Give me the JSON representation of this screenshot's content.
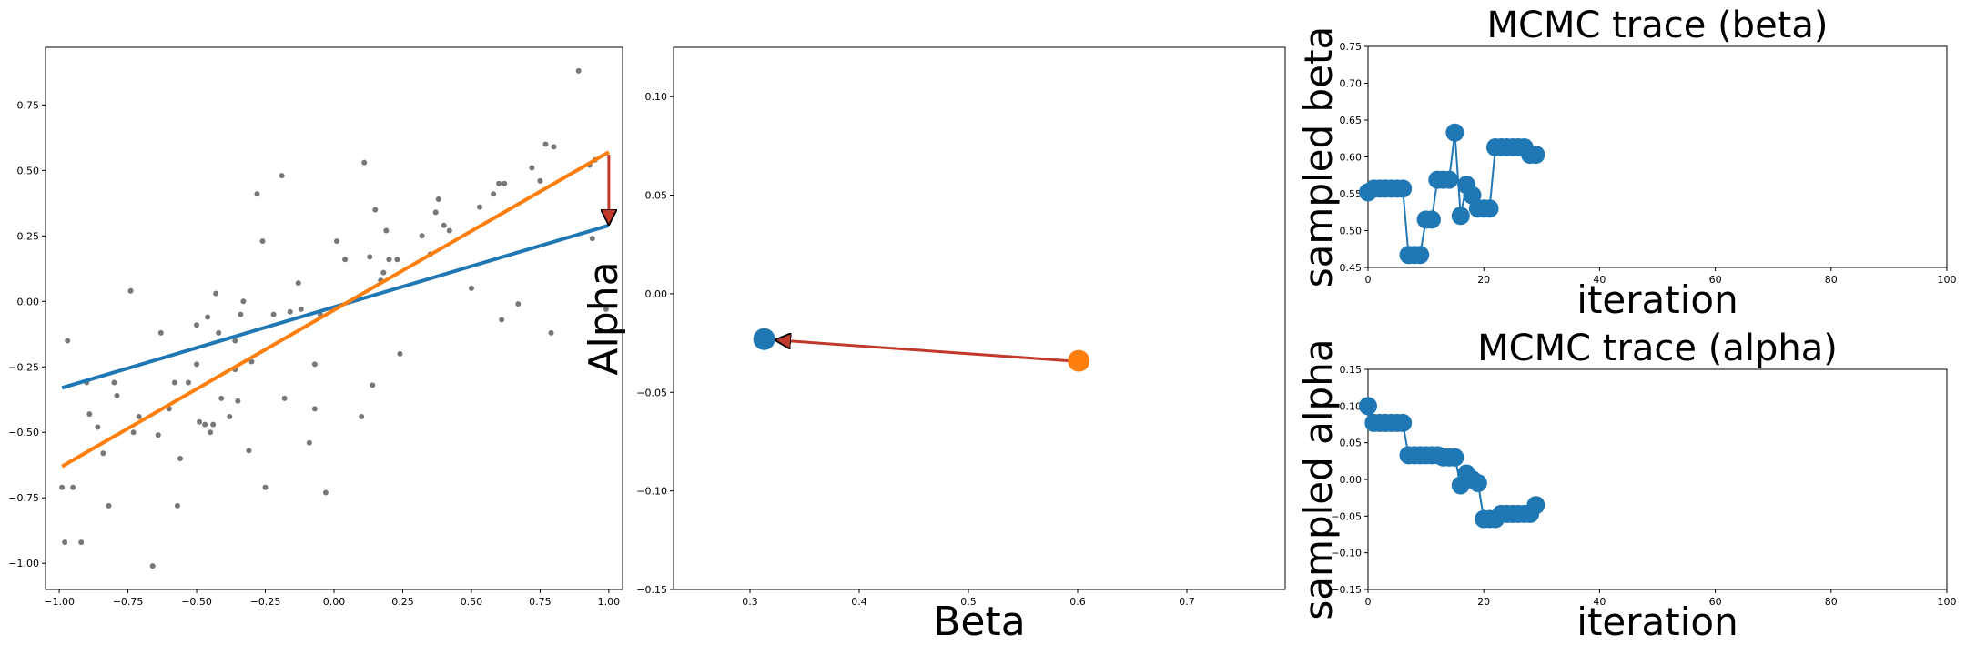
{
  "colors": {
    "blue": "#1f77b4",
    "orange": "#ff7f0e",
    "gray": "#777777",
    "arrow_fill": "#c0392b",
    "arrow_stroke": "#000000"
  },
  "chart_data": [
    {
      "type": "scatter",
      "title": "",
      "xlabel": "",
      "ylabel": "",
      "xlim": [
        -1.05,
        1.05
      ],
      "ylim": [
        -1.1,
        0.97
      ],
      "xticks": [
        -1.0,
        -0.75,
        -0.5,
        -0.25,
        0.0,
        0.25,
        0.5,
        0.75,
        1.0
      ],
      "xtick_labels": [
        "−1.00",
        "−0.75",
        "−0.50",
        "−0.25",
        "0.00",
        "0.25",
        "0.50",
        "0.75",
        "1.00"
      ],
      "yticks": [
        -1.0,
        -0.75,
        -0.5,
        -0.25,
        0.0,
        0.25,
        0.5,
        0.75
      ],
      "ytick_labels": [
        "−1.00",
        "−0.75",
        "−0.50",
        "−0.25",
        "0.00",
        "0.25",
        "0.50",
        "0.75"
      ],
      "points": [
        [
          -0.99,
          -0.71
        ],
        [
          -0.98,
          -0.92
        ],
        [
          -0.97,
          -0.15
        ],
        [
          -0.95,
          -0.71
        ],
        [
          -0.92,
          -0.92
        ],
        [
          -0.9,
          -0.31
        ],
        [
          -0.89,
          -0.43
        ],
        [
          -0.86,
          -0.48
        ],
        [
          -0.84,
          -0.58
        ],
        [
          -0.82,
          -0.78
        ],
        [
          -0.8,
          -0.31
        ],
        [
          -0.79,
          -0.36
        ],
        [
          -0.74,
          0.04
        ],
        [
          -0.73,
          -0.5
        ],
        [
          -0.71,
          -0.44
        ],
        [
          -0.66,
          -1.01
        ],
        [
          -0.64,
          -0.51
        ],
        [
          -0.63,
          -0.12
        ],
        [
          -0.6,
          -0.41
        ],
        [
          -0.58,
          -0.31
        ],
        [
          -0.57,
          -0.78
        ],
        [
          -0.56,
          -0.6
        ],
        [
          -0.53,
          -0.31
        ],
        [
          -0.5,
          -0.09
        ],
        [
          -0.5,
          -0.24
        ],
        [
          -0.49,
          -0.46
        ],
        [
          -0.47,
          -0.47
        ],
        [
          -0.46,
          -0.06
        ],
        [
          -0.45,
          -0.5
        ],
        [
          -0.44,
          -0.47
        ],
        [
          -0.43,
          0.03
        ],
        [
          -0.42,
          -0.12
        ],
        [
          -0.41,
          -0.37
        ],
        [
          -0.38,
          -0.44
        ],
        [
          -0.36,
          -0.15
        ],
        [
          -0.36,
          -0.26
        ],
        [
          -0.35,
          -0.38
        ],
        [
          -0.34,
          -0.05
        ],
        [
          -0.33,
          0.0
        ],
        [
          -0.31,
          -0.57
        ],
        [
          -0.3,
          -0.23
        ],
        [
          -0.28,
          0.41
        ],
        [
          -0.26,
          0.23
        ],
        [
          -0.25,
          -0.71
        ],
        [
          -0.22,
          -0.05
        ],
        [
          -0.19,
          0.48
        ],
        [
          -0.18,
          -0.37
        ],
        [
          -0.16,
          -0.04
        ],
        [
          -0.13,
          0.07
        ],
        [
          -0.12,
          -0.03
        ],
        [
          -0.09,
          -0.54
        ],
        [
          -0.07,
          -0.41
        ],
        [
          -0.07,
          -0.24
        ],
        [
          -0.05,
          -0.05
        ],
        [
          -0.03,
          -0.73
        ],
        [
          0.01,
          0.23
        ],
        [
          0.04,
          0.16
        ],
        [
          0.1,
          -0.44
        ],
        [
          0.11,
          0.53
        ],
        [
          0.13,
          0.17
        ],
        [
          0.14,
          -0.32
        ],
        [
          0.15,
          0.35
        ],
        [
          0.17,
          0.08
        ],
        [
          0.18,
          0.11
        ],
        [
          0.19,
          0.27
        ],
        [
          0.2,
          0.16
        ],
        [
          0.23,
          0.16
        ],
        [
          0.24,
          -0.2
        ],
        [
          0.32,
          0.25
        ],
        [
          0.35,
          0.18
        ],
        [
          0.37,
          0.34
        ],
        [
          0.38,
          0.39
        ],
        [
          0.4,
          0.29
        ],
        [
          0.42,
          0.27
        ],
        [
          0.5,
          0.05
        ],
        [
          0.53,
          0.36
        ],
        [
          0.58,
          0.41
        ],
        [
          0.6,
          0.45
        ],
        [
          0.61,
          -0.07
        ],
        [
          0.62,
          0.45
        ],
        [
          0.67,
          -0.01
        ],
        [
          0.72,
          0.51
        ],
        [
          0.75,
          0.46
        ],
        [
          0.77,
          0.6
        ],
        [
          0.79,
          -0.12
        ],
        [
          0.8,
          0.59
        ],
        [
          0.89,
          0.88
        ],
        [
          0.93,
          0.52
        ],
        [
          0.94,
          0.24
        ],
        [
          0.95,
          0.54
        ],
        [
          0.99,
          -0.03
        ]
      ],
      "lines": [
        {
          "color": "blue",
          "x": [
            -0.99,
            1.0
          ],
          "y": [
            -0.33,
            0.29
          ]
        },
        {
          "color": "orange",
          "x": [
            -0.99,
            1.0
          ],
          "y": [
            -0.63,
            0.57
          ]
        }
      ],
      "arrow": {
        "x": [
          1.0,
          1.0
        ],
        "y": [
          0.56,
          0.3
        ]
      }
    },
    {
      "type": "scatter",
      "title": "",
      "xlabel": "Beta",
      "ylabel": "Alpha",
      "xlim": [
        0.23,
        0.79
      ],
      "ylim": [
        -0.15,
        0.125
      ],
      "xticks": [
        0.3,
        0.4,
        0.5,
        0.6,
        0.7
      ],
      "xtick_labels": [
        "0.3",
        "0.4",
        "0.5",
        "0.6",
        "0.7"
      ],
      "yticks": [
        -0.15,
        -0.1,
        -0.05,
        0.0,
        0.05,
        0.1
      ],
      "ytick_labels": [
        "−0.15",
        "−0.10",
        "−0.05",
        "0.00",
        "0.05",
        "0.10"
      ],
      "points": [
        {
          "color": "blue",
          "x": 0.313,
          "y": -0.023
        },
        {
          "color": "orange",
          "x": 0.601,
          "y": -0.034
        }
      ],
      "arrow": {
        "x": [
          0.592,
          0.325
        ],
        "y": [
          -0.034,
          -0.0235
        ]
      }
    },
    {
      "type": "line",
      "title": "MCMC trace (beta)",
      "xlabel": "iteration",
      "ylabel": "sampled beta",
      "xlim": [
        0,
        100
      ],
      "ylim": [
        0.45,
        0.75
      ],
      "xticks": [
        0,
        20,
        40,
        60,
        80,
        100
      ],
      "xtick_labels": [
        "0",
        "20",
        "40",
        "60",
        "80",
        "100"
      ],
      "yticks": [
        0.45,
        0.5,
        0.55,
        0.6,
        0.65,
        0.7,
        0.75
      ],
      "ytick_labels": [
        "0.45",
        "0.50",
        "0.55",
        "0.60",
        "0.65",
        "0.70",
        "0.75"
      ],
      "x": [
        0,
        1,
        2,
        3,
        4,
        5,
        6,
        7,
        8,
        9,
        10,
        11,
        12,
        13,
        14,
        15,
        16,
        17,
        18,
        19,
        20,
        21,
        22,
        23,
        24,
        25,
        26,
        27,
        28,
        29
      ],
      "y": [
        0.552,
        0.557,
        0.557,
        0.557,
        0.557,
        0.557,
        0.557,
        0.467,
        0.467,
        0.467,
        0.515,
        0.515,
        0.569,
        0.569,
        0.569,
        0.633,
        0.52,
        0.562,
        0.548,
        0.53,
        0.53,
        0.53,
        0.613,
        0.613,
        0.613,
        0.613,
        0.613,
        0.613,
        0.603,
        0.603
      ]
    },
    {
      "type": "line",
      "title": "MCMC trace (alpha)",
      "xlabel": "iteration",
      "ylabel": "sampled alpha",
      "xlim": [
        0,
        100
      ],
      "ylim": [
        -0.15,
        0.15
      ],
      "xticks": [
        0,
        20,
        40,
        60,
        80,
        100
      ],
      "xtick_labels": [
        "0",
        "20",
        "40",
        "60",
        "80",
        "100"
      ],
      "yticks": [
        -0.15,
        -0.1,
        -0.05,
        0.0,
        0.05,
        0.1,
        0.15
      ],
      "ytick_labels": [
        "−0.15",
        "−0.10",
        "−0.05",
        "0.00",
        "0.05",
        "0.10",
        "0.15"
      ],
      "x": [
        0,
        1,
        2,
        3,
        4,
        5,
        6,
        7,
        8,
        9,
        10,
        11,
        12,
        13,
        14,
        15,
        16,
        17,
        18,
        19,
        20,
        21,
        22,
        23,
        24,
        25,
        26,
        27,
        28,
        29
      ],
      "y": [
        0.1,
        0.077,
        0.077,
        0.077,
        0.077,
        0.077,
        0.077,
        0.033,
        0.033,
        0.033,
        0.033,
        0.033,
        0.033,
        0.03,
        0.03,
        0.03,
        -0.008,
        0.008,
        0.0,
        -0.005,
        -0.054,
        -0.054,
        -0.054,
        -0.047,
        -0.047,
        -0.047,
        -0.047,
        -0.047,
        -0.047,
        -0.035
      ]
    }
  ]
}
